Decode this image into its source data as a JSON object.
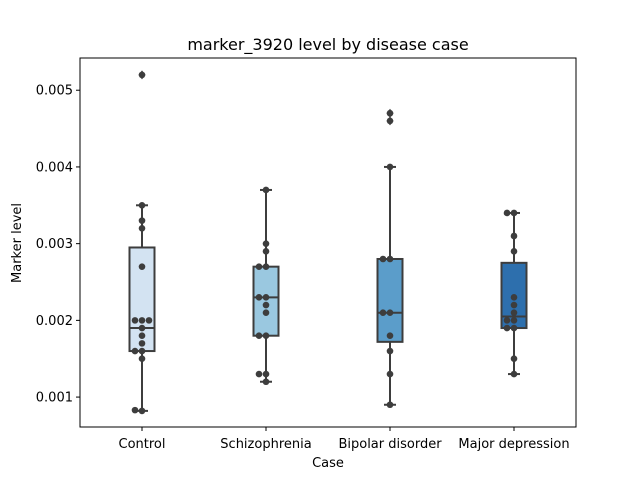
{
  "chart_data": {
    "type": "box",
    "title": "marker_3920 level by disease case",
    "xlabel": "Case",
    "ylabel": "Marker level",
    "ylim": [
      0.00061,
      0.00542
    ],
    "yticks": [
      0.001,
      0.002,
      0.003,
      0.004,
      0.005
    ],
    "ytick_labels": [
      "0.001",
      "0.002",
      "0.003",
      "0.004",
      "0.005"
    ],
    "grid": false,
    "categories": [
      "Control",
      "Schizophrenia",
      "Bipolar disorder",
      "Major depression"
    ],
    "colors": [
      "#d3e3f2",
      "#9ac8e0",
      "#5b9dca",
      "#2d6fad"
    ],
    "boxes": [
      {
        "q1": 0.0016,
        "median": 0.0019,
        "q3": 0.00295,
        "whisker_low": 0.00082,
        "whisker_high": 0.0035,
        "outliers": [
          0.0052
        ]
      },
      {
        "q1": 0.0018,
        "median": 0.0023,
        "q3": 0.0027,
        "whisker_low": 0.0012,
        "whisker_high": 0.0037,
        "outliers": []
      },
      {
        "q1": 0.00172,
        "median": 0.0021,
        "q3": 0.0028,
        "whisker_low": 0.0009,
        "whisker_high": 0.004,
        "outliers": [
          0.0046,
          0.0047
        ]
      },
      {
        "q1": 0.0019,
        "median": 0.00205,
        "q3": 0.00275,
        "whisker_low": 0.0013,
        "whisker_high": 0.0034,
        "outliers": []
      }
    ],
    "points": [
      [
        0.0052,
        0.0035,
        0.0033,
        0.0032,
        0.0027,
        0.002,
        0.002,
        0.002,
        0.0019,
        0.0018,
        0.0017,
        0.0016,
        0.0016,
        0.0015,
        0.00083,
        0.00082
      ],
      [
        0.0037,
        0.003,
        0.0029,
        0.0027,
        0.0027,
        0.0023,
        0.0023,
        0.0022,
        0.0021,
        0.0018,
        0.0018,
        0.0013,
        0.0013,
        0.0012
      ],
      [
        0.0047,
        0.0046,
        0.004,
        0.0028,
        0.0028,
        0.0021,
        0.0021,
        0.0018,
        0.0016,
        0.0013,
        0.0009
      ],
      [
        0.0034,
        0.0034,
        0.0031,
        0.0029,
        0.0023,
        0.0022,
        0.0021,
        0.002,
        0.002,
        0.0019,
        0.0019,
        0.0015,
        0.0013
      ]
    ]
  }
}
